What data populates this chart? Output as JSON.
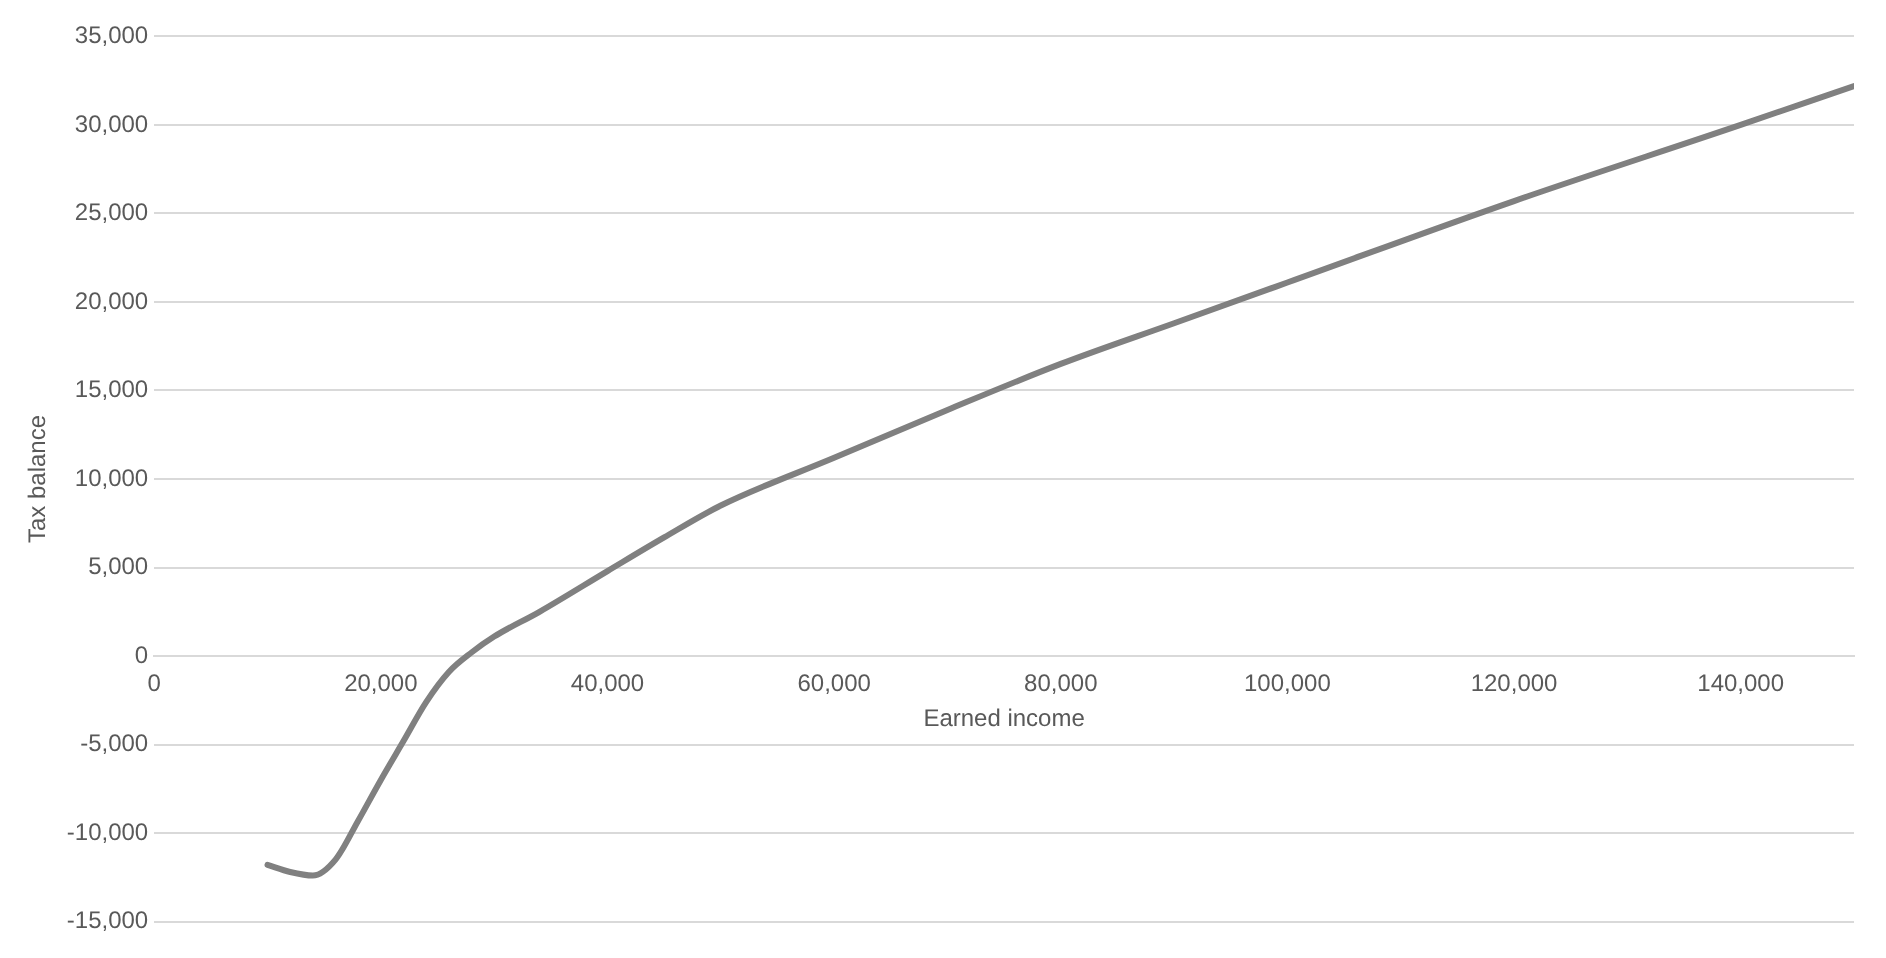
{
  "chart_data": {
    "type": "line",
    "xlabel": "Earned income",
    "ylabel": "Tax balance",
    "x": [
      10000,
      12000,
      14000,
      16000,
      18000,
      20000,
      22000,
      24000,
      26000,
      28000,
      30000,
      34000,
      40000,
      45000,
      50000,
      60000,
      70000,
      80000,
      90000,
      100000,
      120000,
      140000,
      150000
    ],
    "series": [
      {
        "color": "#808080",
        "values": [
          -11800,
          -12200,
          -12400,
          -11500,
          -9300,
          -7000,
          -4800,
          -2600,
          -900,
          200,
          1100,
          2500,
          4800,
          6700,
          8500,
          11200,
          13900,
          16500,
          18800,
          21100,
          25700,
          30000,
          32200
        ]
      }
    ],
    "xlim": [
      0,
      150000
    ],
    "xticks": [
      0,
      {
        "value": 20000,
        "label": "20,000"
      },
      {
        "value": 40000,
        "label": "40,000"
      },
      {
        "value": 60000,
        "label": "60,000"
      },
      {
        "value": 80000,
        "label": "80,000"
      },
      {
        "value": 100000,
        "label": "100,000"
      },
      {
        "value": 120000,
        "label": "120,000"
      },
      {
        "value": 140000,
        "label": "140,000"
      }
    ],
    "ylim": [
      -15000,
      35000
    ],
    "yticks": [
      {
        "value": -15000,
        "label": "-15,000"
      },
      {
        "value": -10000,
        "label": "-10,000"
      },
      {
        "value": -5000,
        "label": "-5,000"
      },
      0,
      {
        "value": 5000,
        "label": "5,000"
      },
      {
        "value": 10000,
        "label": "10,000"
      },
      {
        "value": 15000,
        "label": "15,000"
      },
      {
        "value": 20000,
        "label": "20,000"
      },
      {
        "value": 25000,
        "label": "25,000"
      },
      {
        "value": 30000,
        "label": "30,000"
      },
      {
        "value": 35000,
        "label": "35,000"
      }
    ],
    "grid": "y",
    "legend": false,
    "marker": "none"
  }
}
